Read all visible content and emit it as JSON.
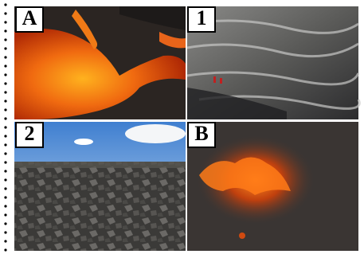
{
  "panels": [
    {
      "label": "A"
    },
    {
      "label": "1"
    },
    {
      "label": "2"
    },
    {
      "label": "B"
    }
  ]
}
